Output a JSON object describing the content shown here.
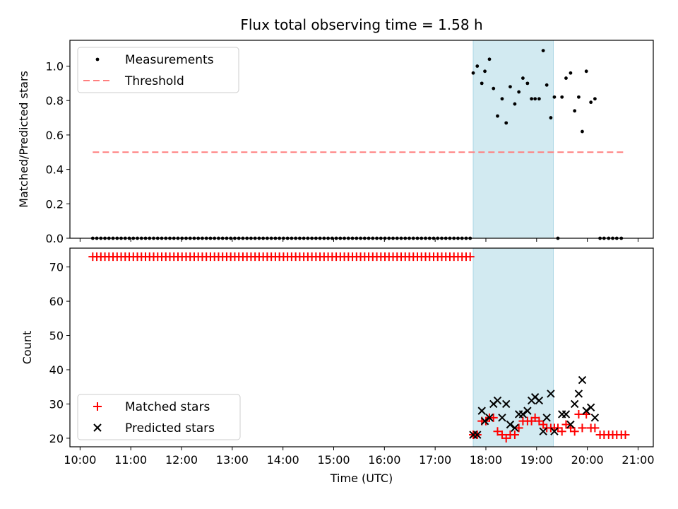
{
  "title": "Flux total observing time = 1.58 h",
  "colors": {
    "span": "#add8e6",
    "measurement": "#000000",
    "threshold": "#ff7f7f",
    "matched": "#ff0000",
    "predicted": "#000000"
  },
  "chart_data": [
    {
      "type": "scatter",
      "ylabel": "Matched/Predicted stars",
      "xlabel": "",
      "xlim": [
        9.8,
        21.3
      ],
      "ylim": [
        0.0,
        1.15
      ],
      "yticks": [
        0.0,
        0.2,
        0.4,
        0.6,
        0.8,
        1.0
      ],
      "ytick_labels": [
        "0.0",
        "0.2",
        "0.4",
        "0.6",
        "0.8",
        "1.0"
      ],
      "xticks": [
        10,
        11,
        12,
        13,
        14,
        15,
        16,
        17,
        18,
        19,
        20,
        21
      ],
      "span": [
        17.75,
        19.33
      ],
      "legend": [
        "Measurements",
        "Threshold"
      ],
      "legend_position": "upper-left",
      "threshold": {
        "x": [
          10.25,
          20.75
        ],
        "y": 0.5
      },
      "zero_points": {
        "start": 10.25,
        "end": 17.73,
        "step": 0.08,
        "extra": [
          19.42,
          20.25,
          20.33,
          20.42,
          20.5,
          20.58,
          20.67
        ]
      },
      "measurements": {
        "x": [
          17.75,
          17.83,
          17.92,
          17.98,
          18.07,
          18.15,
          18.23,
          18.32,
          18.4,
          18.48,
          18.57,
          18.65,
          18.73,
          18.82,
          18.9,
          18.97,
          19.05,
          19.13,
          19.2,
          19.28,
          19.35,
          19.5,
          19.58,
          19.67,
          19.75,
          19.83,
          19.9,
          19.98,
          20.07,
          20.15
        ],
        "y": [
          0.96,
          1.0,
          0.9,
          0.97,
          1.04,
          0.87,
          0.71,
          0.81,
          0.67,
          0.88,
          0.78,
          0.85,
          0.93,
          0.9,
          0.81,
          0.81,
          0.81,
          1.09,
          0.89,
          0.7,
          0.82,
          0.82,
          0.93,
          0.96,
          0.74,
          0.82,
          0.62,
          0.97,
          0.79,
          0.81
        ]
      }
    },
    {
      "type": "scatter",
      "ylabel": "Count",
      "xlabel": "Time (UTC)",
      "xlim": [
        9.8,
        21.3
      ],
      "ylim": [
        17.5,
        75.5
      ],
      "yticks": [
        20,
        30,
        40,
        50,
        60,
        70
      ],
      "ytick_labels": [
        "20",
        "30",
        "40",
        "50",
        "60",
        "70"
      ],
      "xticks": [
        10,
        11,
        12,
        13,
        14,
        15,
        16,
        17,
        18,
        19,
        20,
        21
      ],
      "xtick_labels": [
        "10:00",
        "11:00",
        "12:00",
        "13:00",
        "14:00",
        "15:00",
        "16:00",
        "17:00",
        "18:00",
        "19:00",
        "20:00",
        "21:00"
      ],
      "span": [
        17.75,
        19.33
      ],
      "legend": [
        "Matched stars",
        "Predicted stars"
      ],
      "legend_position": "lower-left",
      "flat_matched": {
        "start": 10.25,
        "end": 17.73,
        "step": 0.08,
        "value": 73
      },
      "matched": {
        "x": [
          17.75,
          17.83,
          17.92,
          18.0,
          18.07,
          18.15,
          18.23,
          18.32,
          18.4,
          18.48,
          18.57,
          18.65,
          18.73,
          18.82,
          18.9,
          18.97,
          19.05,
          19.13,
          19.2,
          19.28,
          19.35,
          19.42,
          19.5,
          19.58,
          19.67,
          19.75,
          19.83,
          19.9,
          19.98,
          20.07,
          20.15,
          20.25,
          20.33,
          20.42,
          20.5,
          20.58,
          20.67,
          20.75
        ],
        "y": [
          21,
          21,
          25,
          25,
          26,
          26,
          22,
          21,
          20,
          21,
          21,
          23,
          25,
          25,
          25,
          26,
          25,
          24,
          23,
          23,
          23,
          23,
          22,
          24,
          23,
          22,
          27,
          23,
          27,
          23,
          23,
          21,
          21,
          21,
          21,
          21,
          21,
          21
        ]
      },
      "predicted": {
        "x": [
          17.75,
          17.83,
          17.92,
          17.98,
          18.07,
          18.15,
          18.23,
          18.32,
          18.4,
          18.48,
          18.57,
          18.65,
          18.73,
          18.82,
          18.9,
          18.97,
          19.05,
          19.13,
          19.2,
          19.28,
          19.35,
          19.5,
          19.58,
          19.67,
          19.75,
          19.83,
          19.9,
          19.98,
          20.07,
          20.15
        ],
        "y": [
          21,
          21,
          28,
          25,
          26,
          30,
          31,
          26,
          30,
          24,
          23,
          27,
          27,
          28,
          31,
          32,
          31,
          22,
          26,
          33,
          22,
          27,
          27,
          24,
          30,
          33,
          37,
          28,
          29,
          26
        ]
      }
    }
  ]
}
